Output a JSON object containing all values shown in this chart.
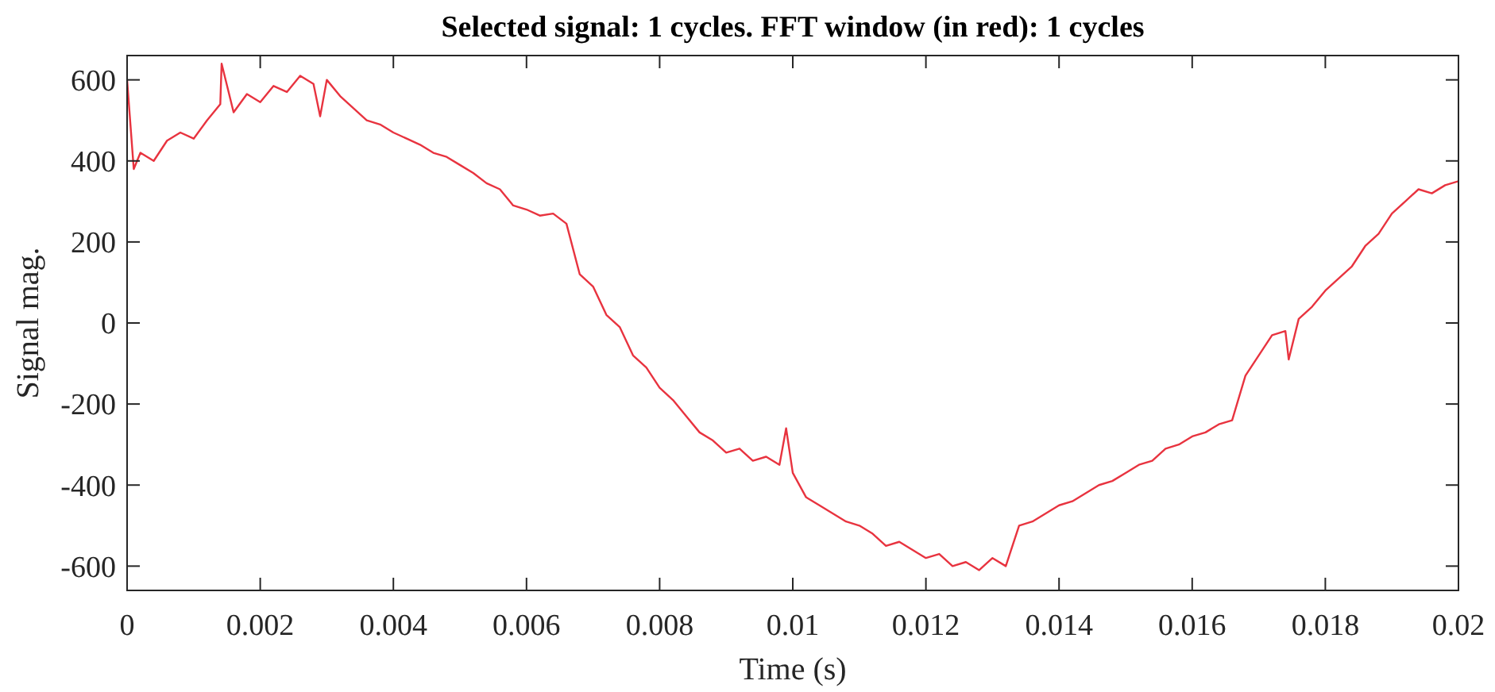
{
  "chart_data": {
    "type": "line",
    "title": "Selected signal: 1 cycles. FFT window (in red): 1 cycles",
    "xlabel": "Time (s)",
    "ylabel": "Signal mag.",
    "xlim": [
      0,
      0.02
    ],
    "xticks": [
      0,
      0.002,
      0.004,
      0.006,
      0.008,
      0.01,
      0.012,
      0.014,
      0.016,
      0.018,
      0.02
    ],
    "ylim": [
      -660,
      660
    ],
    "yticks": [
      -600,
      -400,
      -200,
      0,
      200,
      400,
      600
    ],
    "grid": false,
    "marker": "none",
    "line_style": "solid",
    "series": [
      {
        "color": "#e8333f",
        "x": [
          0,
          0.0001,
          0.0002,
          0.0004,
          0.0006,
          0.0008,
          0.001,
          0.0012,
          0.0014,
          0.00142,
          0.0016,
          0.0018,
          0.002,
          0.0022,
          0.0024,
          0.0026,
          0.0028,
          0.0029,
          0.003,
          0.0032,
          0.0034,
          0.0036,
          0.0038,
          0.004,
          0.0042,
          0.0044,
          0.0046,
          0.0048,
          0.005,
          0.0052,
          0.0054,
          0.0056,
          0.0058,
          0.006,
          0.0062,
          0.0064,
          0.0066,
          0.0068,
          0.007,
          0.0072,
          0.0074,
          0.0076,
          0.0078,
          0.008,
          0.0082,
          0.0084,
          0.0086,
          0.0088,
          0.009,
          0.0092,
          0.0094,
          0.0096,
          0.0098,
          0.0099,
          0.01,
          0.0102,
          0.0104,
          0.0106,
          0.0108,
          0.011,
          0.0112,
          0.0114,
          0.0116,
          0.0118,
          0.012,
          0.0122,
          0.0124,
          0.0126,
          0.0128,
          0.013,
          0.0132,
          0.0134,
          0.0136,
          0.0138,
          0.014,
          0.0142,
          0.0144,
          0.0146,
          0.0148,
          0.015,
          0.0152,
          0.0154,
          0.0156,
          0.0158,
          0.016,
          0.0162,
          0.0164,
          0.0166,
          0.0168,
          0.017,
          0.0172,
          0.0174,
          0.01745,
          0.0176,
          0.0178,
          0.018,
          0.0182,
          0.0184,
          0.0186,
          0.0188,
          0.019,
          0.0192,
          0.0194,
          0.0196,
          0.0198,
          0.02
        ],
        "values": [
          600,
          380,
          420,
          400,
          450,
          470,
          455,
          500,
          540,
          640,
          520,
          565,
          545,
          585,
          570,
          610,
          590,
          510,
          600,
          560,
          530,
          500,
          490,
          470,
          455,
          440,
          420,
          410,
          390,
          370,
          345,
          330,
          290,
          280,
          265,
          270,
          245,
          120,
          90,
          20,
          -10,
          -80,
          -110,
          -160,
          -190,
          -230,
          -270,
          -290,
          -320,
          -310,
          -340,
          -330,
          -350,
          -260,
          -370,
          -430,
          -450,
          -470,
          -490,
          -500,
          -520,
          -550,
          -540,
          -560,
          -580,
          -570,
          -600,
          -590,
          -610,
          -580,
          -600,
          -500,
          -490,
          -470,
          -450,
          -440,
          -420,
          -400,
          -390,
          -370,
          -350,
          -340,
          -310,
          -300,
          -280,
          -270,
          -250,
          -240,
          -130,
          -80,
          -30,
          -20,
          -90,
          10,
          40,
          80,
          110,
          140,
          190,
          220,
          270,
          300,
          330,
          320,
          340,
          350
        ]
      }
    ]
  }
}
